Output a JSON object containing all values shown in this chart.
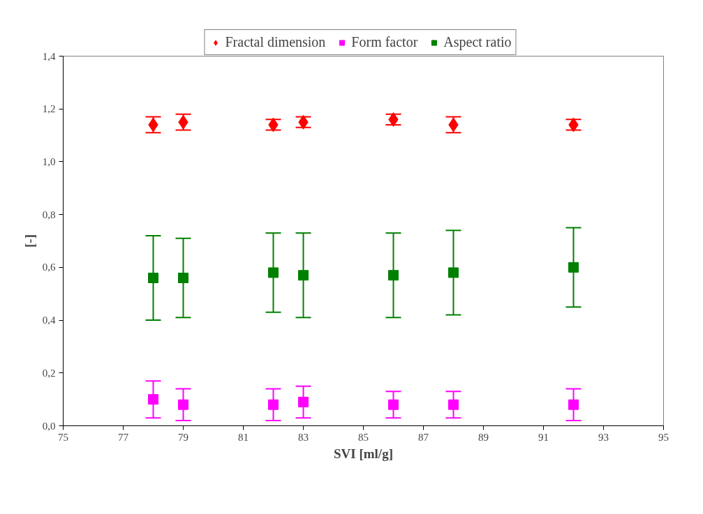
{
  "chart_data": {
    "type": "scatter",
    "xlabel": "SVI [ml/g]",
    "ylabel": "[-]",
    "xlim": [
      75,
      95
    ],
    "xticks": [
      75,
      77,
      79,
      81,
      83,
      85,
      87,
      89,
      91,
      93,
      95
    ],
    "ylim": [
      0,
      1.4
    ],
    "yticks": [
      {
        "value": 0,
        "label": "0,0"
      },
      {
        "value": 0.2,
        "label": "0,2"
      },
      {
        "value": 0.4,
        "label": "0,4"
      },
      {
        "value": 0.6,
        "label": "0,6"
      },
      {
        "value": 0.8,
        "label": "0,8"
      },
      {
        "value": 1.0,
        "label": "1,0"
      },
      {
        "value": 1.2,
        "label": "1,2"
      },
      {
        "value": 1.4,
        "label": "1,4"
      }
    ],
    "grid": false,
    "legend": "top",
    "series": [
      {
        "name": "Fractal dimension",
        "color": "#ff0000",
        "marker": "diamond",
        "x": [
          78,
          79,
          82,
          83,
          86,
          88,
          92
        ],
        "values": [
          1.14,
          1.15,
          1.14,
          1.15,
          1.16,
          1.14,
          1.14
        ],
        "errors": [
          0.03,
          0.03,
          0.02,
          0.02,
          0.02,
          0.03,
          0.02
        ]
      },
      {
        "name": "Form factor",
        "color": "#ff00ff",
        "marker": "square",
        "x": [
          78,
          79,
          82,
          83,
          86,
          88,
          92
        ],
        "values": [
          0.1,
          0.08,
          0.08,
          0.09,
          0.08,
          0.08,
          0.08
        ],
        "errors": [
          0.07,
          0.06,
          0.06,
          0.06,
          0.05,
          0.05,
          0.06
        ]
      },
      {
        "name": "Aspect ratio",
        "color": "#008000",
        "marker": "square",
        "x": [
          78,
          79,
          82,
          83,
          86,
          88,
          92
        ],
        "values": [
          0.56,
          0.56,
          0.58,
          0.57,
          0.57,
          0.58,
          0.6
        ],
        "errors": [
          0.16,
          0.15,
          0.15,
          0.16,
          0.16,
          0.16,
          0.15
        ]
      }
    ]
  }
}
